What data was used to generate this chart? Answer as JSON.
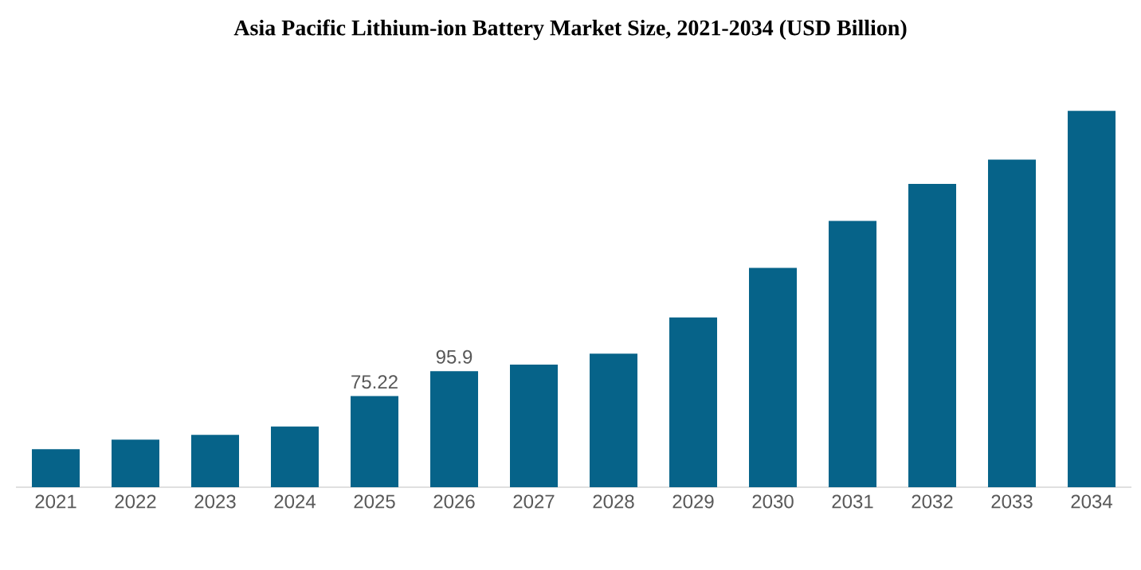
{
  "chart_data": {
    "type": "bar",
    "title": "Asia Pacific Lithium-ion Battery Market Size, 2021-2034 (USD Billion)",
    "categories": [
      "2021",
      "2022",
      "2023",
      "2024",
      "2025",
      "2026",
      "2027",
      "2028",
      "2029",
      "2030",
      "2031",
      "2032",
      "2033",
      "2034"
    ],
    "values": [
      31.4,
      39.3,
      43.2,
      50.2,
      75.22,
      95.9,
      101.3,
      110.4,
      140.2,
      181.2,
      220.0,
      250.6,
      270.7,
      310.9
    ],
    "value_labels": [
      null,
      null,
      null,
      null,
      "75.22",
      "95.9",
      null,
      null,
      null,
      null,
      null,
      null,
      null,
      null
    ],
    "color": "#066389"
  }
}
